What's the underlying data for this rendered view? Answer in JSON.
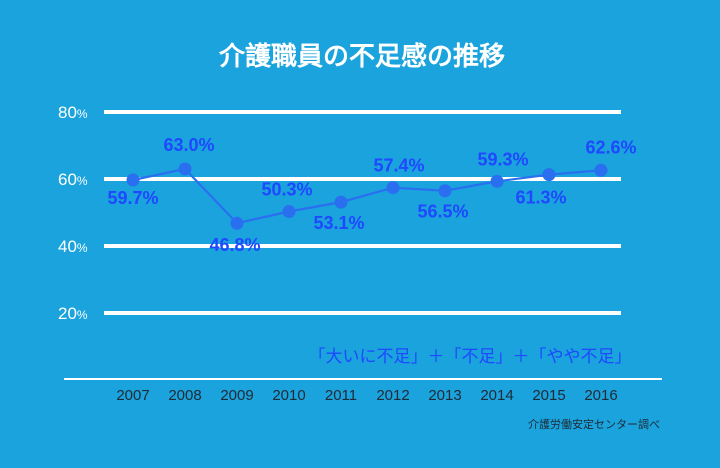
{
  "chart_data": {
    "type": "line",
    "title": "介護職員の不足感の推移",
    "x": [
      "2007",
      "2008",
      "2009",
      "2010",
      "2011",
      "2012",
      "2013",
      "2014",
      "2015",
      "2016"
    ],
    "series": [
      {
        "name": "",
        "values": [
          59.7,
          63.0,
          46.8,
          50.3,
          53.1,
          57.4,
          56.5,
          59.3,
          61.3,
          62.6
        ],
        "labels": [
          "59.7%",
          "63.0%",
          "46.8%",
          "50.3%",
          "53.1%",
          "57.4%",
          "56.5%",
          "59.3%",
          "61.3%",
          "62.6%"
        ]
      }
    ],
    "yticks": [
      {
        "value": 20,
        "num": "20",
        "unit": "%"
      },
      {
        "value": 40,
        "num": "40",
        "unit": "%"
      },
      {
        "value": 60,
        "num": "60",
        "unit": "%"
      },
      {
        "value": 80,
        "num": "80",
        "unit": "%"
      }
    ],
    "ylim": [
      0,
      80
    ],
    "grid": true,
    "annotation": "「大いに不足」＋「不足」＋「やや不足」",
    "source": "介護労働安定センター調べ",
    "colors": {
      "background": "#1aa3dc",
      "line": "#2a6ff0",
      "marker": "#2a6ff0",
      "label": "#1f48ff",
      "grid": "#ffffff",
      "xtick": "#1f2a36"
    }
  }
}
